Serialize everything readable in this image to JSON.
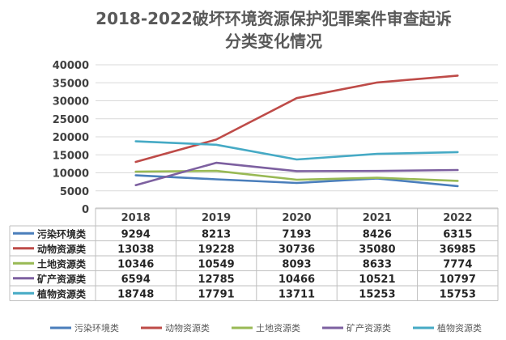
{
  "chart_data": {
    "type": "line",
    "title": "2018-2022破坏环境资源保护犯罪案件审查起诉分类变化情况",
    "title_lines": [
      "2018-2022破坏环境资源保护犯罪案件审查起诉",
      "分类变化情况"
    ],
    "categories": [
      "2018",
      "2019",
      "2020",
      "2021",
      "2022"
    ],
    "ylim": [
      0,
      40000
    ],
    "yticks": [
      "0",
      "5000",
      "10000",
      "15000",
      "20000",
      "25000",
      "30000",
      "35000",
      "40000"
    ],
    "grid": true,
    "legend_position": "bottom",
    "data_table": true,
    "series": [
      {
        "name": "污染环境类",
        "color": "#4a7ebb",
        "values": [
          9294,
          8213,
          7193,
          8426,
          6315
        ]
      },
      {
        "name": "动物资源类",
        "color": "#be4b48",
        "values": [
          13038,
          19228,
          30736,
          35080,
          36985
        ]
      },
      {
        "name": "土地资源类",
        "color": "#98b954",
        "values": [
          10346,
          10549,
          8093,
          8633,
          7774
        ]
      },
      {
        "name": "矿产资源类",
        "color": "#7d60a0",
        "values": [
          6594,
          12785,
          10466,
          10521,
          10797
        ]
      },
      {
        "name": "植物资源类",
        "color": "#46aac5",
        "values": [
          18748,
          17791,
          13711,
          15253,
          15753
        ]
      }
    ]
  }
}
